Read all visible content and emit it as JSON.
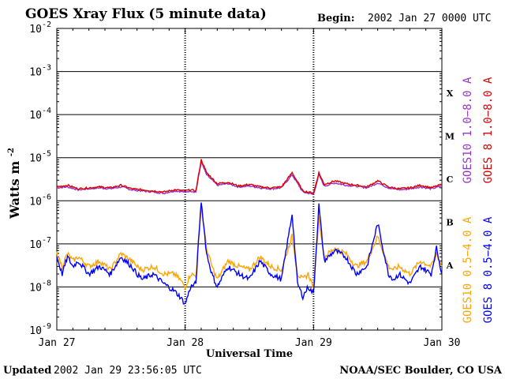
{
  "header": {
    "title": "GOES Xray Flux (5 minute data)",
    "begin_label": "Begin:",
    "begin_value": "2002 Jan 27 0000 UTC"
  },
  "footer": {
    "updated_label": "Updated",
    "updated_value": "2002 Jan 29 23:56:05 UTC",
    "credit": "NOAA/SEC Boulder, CO USA"
  },
  "colors": {
    "goes10_long": "#9933cc",
    "goes8_long": "#dd0000",
    "goes10_short": "#ffa500",
    "goes8_short": "#0000ff",
    "axes": "#000000"
  },
  "chart_data": {
    "type": "line",
    "title": "GOES Xray Flux (5 minute data)",
    "xlabel": "Universal Time",
    "ylabel": "Watts m",
    "ylabel_sup": "-2",
    "yscale": "log",
    "ylim": [
      1e-09,
      0.01
    ],
    "xlim": [
      "2002-01-27 00:00",
      "2002-01-30 00:00"
    ],
    "x_ticks": [
      "Jan 27",
      "Jan 28",
      "Jan 29",
      "Jan 30"
    ],
    "y_ticks": [
      {
        "base": "10",
        "exp": "-2"
      },
      {
        "base": "10",
        "exp": "-3"
      },
      {
        "base": "10",
        "exp": "-4"
      },
      {
        "base": "10",
        "exp": "-5"
      },
      {
        "base": "10",
        "exp": "-6"
      },
      {
        "base": "10",
        "exp": "-7"
      },
      {
        "base": "10",
        "exp": "-8"
      },
      {
        "base": "10",
        "exp": "-9"
      }
    ],
    "flare_classes": [
      {
        "label": "X",
        "level": 0.0001
      },
      {
        "label": "M",
        "level": 1e-05
      },
      {
        "label": "C",
        "level": 1e-06
      },
      {
        "label": "B",
        "level": 1e-07
      },
      {
        "label": "A",
        "level": 1e-08
      }
    ],
    "grid": true,
    "series": [
      {
        "name": "GOES10 1.0−8.0 A",
        "channel": "long",
        "x_hours": [
          0,
          2,
          4,
          6,
          8,
          10,
          12,
          14,
          16,
          18,
          20,
          22,
          24,
          25,
          26,
          27,
          28,
          30,
          32,
          34,
          36,
          38,
          40,
          42,
          44,
          46,
          48,
          49,
          50,
          52,
          54,
          56,
          58,
          60,
          62,
          64,
          66,
          68,
          70,
          72
        ],
        "values": [
          2e-06,
          2.1e-06,
          1.8e-06,
          1.9e-06,
          2e-06,
          1.9e-06,
          2.1e-06,
          1.8e-06,
          1.7e-06,
          1.6e-06,
          1.5e-06,
          1.7e-06,
          1.6e-06,
          1.7e-06,
          1.6e-06,
          8e-06,
          4e-06,
          2.3e-06,
          2.5e-06,
          2.1e-06,
          2.2e-06,
          2e-06,
          1.9e-06,
          2e-06,
          4e-06,
          1.6e-06,
          1.4e-06,
          4e-06,
          2.2e-06,
          2.6e-06,
          2.3e-06,
          2.2e-06,
          2e-06,
          2.6e-06,
          2e-06,
          1.8e-06,
          1.9e-06,
          2.1e-06,
          1.9e-06,
          2.2e-06
        ]
      },
      {
        "name": "GOES 8 1.0−8.0 A",
        "channel": "long",
        "x_hours": [
          0,
          2,
          4,
          6,
          8,
          10,
          12,
          14,
          16,
          18,
          20,
          22,
          24,
          25,
          26,
          27,
          28,
          30,
          32,
          34,
          36,
          38,
          40,
          42,
          44,
          46,
          48,
          49,
          50,
          52,
          54,
          56,
          58,
          60,
          62,
          64,
          66,
          68,
          70,
          72
        ],
        "values": [
          2.1e-06,
          2.3e-06,
          1.9e-06,
          2e-06,
          2.1e-06,
          2e-06,
          2.3e-06,
          1.9e-06,
          1.8e-06,
          1.7e-06,
          1.6e-06,
          1.8e-06,
          1.7e-06,
          1.8e-06,
          1.7e-06,
          9e-06,
          4.5e-06,
          2.5e-06,
          2.7e-06,
          2.2e-06,
          2.4e-06,
          2.1e-06,
          2e-06,
          2.1e-06,
          4.5e-06,
          1.7e-06,
          1.5e-06,
          4.5e-06,
          2.4e-06,
          2.9e-06,
          2.5e-06,
          2.3e-06,
          2.1e-06,
          2.9e-06,
          2.1e-06,
          1.9e-06,
          2e-06,
          2.3e-06,
          2e-06,
          2.4e-06
        ]
      },
      {
        "name": "GOES10 0.5−4.0 A",
        "channel": "short",
        "x_hours": [
          0,
          1,
          2,
          3,
          4,
          6,
          8,
          10,
          12,
          14,
          15,
          16,
          18,
          20,
          22,
          23,
          24,
          25,
          26,
          27,
          28,
          29,
          30,
          32,
          34,
          36,
          38,
          40,
          42,
          44,
          45,
          46,
          47,
          48,
          49,
          50,
          52,
          54,
          56,
          58,
          60,
          62,
          63,
          64,
          66,
          68,
          70,
          71,
          72
        ],
        "values": [
          6e-08,
          3e-08,
          6e-08,
          4e-08,
          5e-08,
          3e-08,
          4e-08,
          2.5e-08,
          6e-08,
          4e-08,
          3e-08,
          2.5e-08,
          3e-08,
          2e-08,
          2e-08,
          1.5e-08,
          1e-08,
          2e-08,
          1.8e-08,
          8e-07,
          8e-08,
          3e-08,
          1.5e-08,
          4e-08,
          3e-08,
          2.5e-08,
          5e-08,
          3e-08,
          2.5e-08,
          1.5e-07,
          2e-08,
          1.5e-08,
          2e-08,
          1e-08,
          4e-07,
          5e-08,
          8e-08,
          6e-08,
          3e-08,
          4e-08,
          1.5e-07,
          3e-08,
          2.5e-08,
          3e-08,
          2e-08,
          4e-08,
          3e-08,
          6e-08,
          3e-08
        ]
      },
      {
        "name": "GOES 8 0.5−4.0 A",
        "channel": "short",
        "x_hours": [
          0,
          1,
          2,
          3,
          4,
          6,
          8,
          10,
          12,
          14,
          15,
          16,
          18,
          20,
          22,
          23,
          24,
          25,
          26,
          27,
          28,
          29,
          30,
          32,
          34,
          36,
          38,
          40,
          42,
          44,
          45,
          46,
          47,
          48,
          49,
          50,
          52,
          54,
          56,
          58,
          60,
          62,
          63,
          64,
          66,
          68,
          70,
          71,
          72
        ],
        "values": [
          5e-08,
          2e-08,
          5e-08,
          3e-08,
          4e-08,
          2e-08,
          3e-08,
          2e-08,
          5e-08,
          3e-08,
          2e-08,
          1.5e-08,
          2e-08,
          1.2e-08,
          8e-09,
          6e-09,
          4e-09,
          1e-08,
          1.2e-08,
          1e-06,
          6e-08,
          2e-08,
          1e-08,
          3e-08,
          2e-08,
          1.5e-08,
          4e-08,
          2e-08,
          1.5e-08,
          5e-07,
          1.2e-08,
          6e-09,
          1e-08,
          7e-09,
          8e-07,
          4e-08,
          7e-08,
          5e-08,
          2e-08,
          3e-08,
          3e-07,
          2e-08,
          1.5e-08,
          2e-08,
          1.2e-08,
          3e-08,
          2e-08,
          8e-08,
          2e-08
        ]
      }
    ]
  }
}
